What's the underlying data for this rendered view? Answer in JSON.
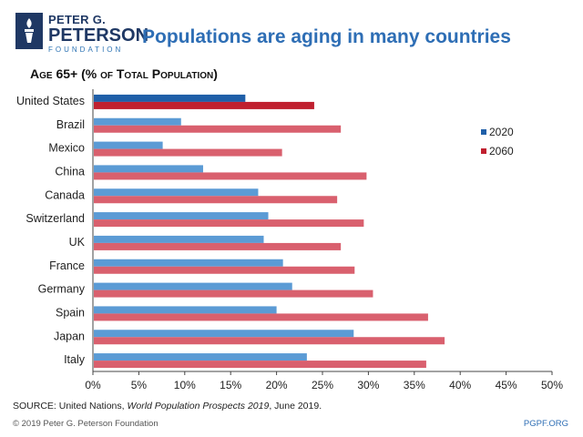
{
  "logo": {
    "line1": "PETER G.",
    "line2": "PETERSON",
    "line3": "FOUNDATION"
  },
  "title": "Populations are aging in many countries",
  "subtitle": "Age 65+ (% of Total Population)",
  "source": {
    "prefix": "SOURCE: United Nations, ",
    "publication": "World Population Prospects 2019",
    "suffix": ", June 2019."
  },
  "copyright": "© 2019 Peter G. Peterson Foundation",
  "site": "PGPF.ORG",
  "colors": {
    "brand": "#1f3864",
    "accent": "#2e6eb5"
  },
  "chart_data": {
    "type": "bar",
    "orientation": "horizontal",
    "title": "Age 65+ (% of Total Population)",
    "categories": [
      "United States",
      "Brazil",
      "Mexico",
      "China",
      "Canada",
      "Switzerland",
      "UK",
      "France",
      "Germany",
      "Spain",
      "Japan",
      "Italy"
    ],
    "series": [
      {
        "name": "2020",
        "color": "#5b9bd5",
        "highlight_color": "#1f5fa8",
        "values": [
          16.6,
          9.6,
          7.6,
          12.0,
          18.0,
          19.1,
          18.6,
          20.7,
          21.7,
          20.0,
          28.4,
          23.3
        ]
      },
      {
        "name": "2060",
        "color": "#d9606e",
        "highlight_color": "#c0202f",
        "values": [
          24.1,
          27.0,
          20.6,
          29.8,
          26.6,
          29.5,
          27.0,
          28.5,
          30.5,
          36.5,
          38.3,
          36.3
        ]
      }
    ],
    "highlight_category": "United States",
    "xlim": [
      0,
      50
    ],
    "xticks": [
      "0%",
      "5%",
      "10%",
      "15%",
      "20%",
      "25%",
      "30%",
      "35%",
      "40%",
      "45%",
      "50%"
    ],
    "legend_position": "right"
  }
}
